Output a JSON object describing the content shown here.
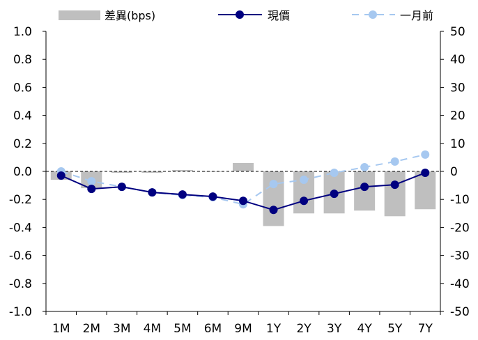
{
  "chart_data": {
    "type": "bar+line",
    "title": "",
    "xlabel": "",
    "ylabel": "",
    "y2label": "",
    "categories": [
      "1M",
      "2M",
      "3M",
      "4M",
      "5M",
      "6M",
      "9M",
      "1Y",
      "2Y",
      "3Y",
      "4Y",
      "5Y",
      "7Y"
    ],
    "ylim": [
      -1.0,
      1.0
    ],
    "y2lim": [
      -50,
      50
    ],
    "yticks": [
      "1.0",
      "0.8",
      "0.6",
      "0.4",
      "0.2",
      "0.0",
      "-0.2",
      "-0.4",
      "-0.6",
      "-0.8",
      "-1.0"
    ],
    "y2ticks": [
      "50",
      "40",
      "30",
      "20",
      "10",
      "0",
      "-10",
      "-20",
      "-30",
      "-40",
      "-50"
    ],
    "series": [
      {
        "name": "差異(bps)",
        "kind": "bar",
        "axis": "right",
        "color": "#bfbfbf",
        "values": [
          -3,
          -6,
          -0.5,
          -0.5,
          0.5,
          0,
          3,
          -19.5,
          -15,
          -15,
          -14,
          -16,
          -13.5
        ]
      },
      {
        "name": "現價",
        "kind": "line",
        "axis": "left",
        "color": "#000080",
        "values": [
          -0.03,
          -0.125,
          -0.11,
          -0.15,
          -0.165,
          -0.18,
          -0.21,
          -0.275,
          -0.21,
          -0.16,
          -0.11,
          -0.095,
          -0.01
        ]
      },
      {
        "name": "一月前",
        "kind": "line-dashed",
        "axis": "left",
        "color": "#a6c8f0",
        "values": [
          0.0,
          -0.07,
          -0.11,
          -0.15,
          -0.17,
          -0.185,
          -0.235,
          -0.09,
          -0.06,
          -0.01,
          0.03,
          0.07,
          0.12
        ]
      }
    ],
    "grid": false,
    "legend": "top"
  }
}
